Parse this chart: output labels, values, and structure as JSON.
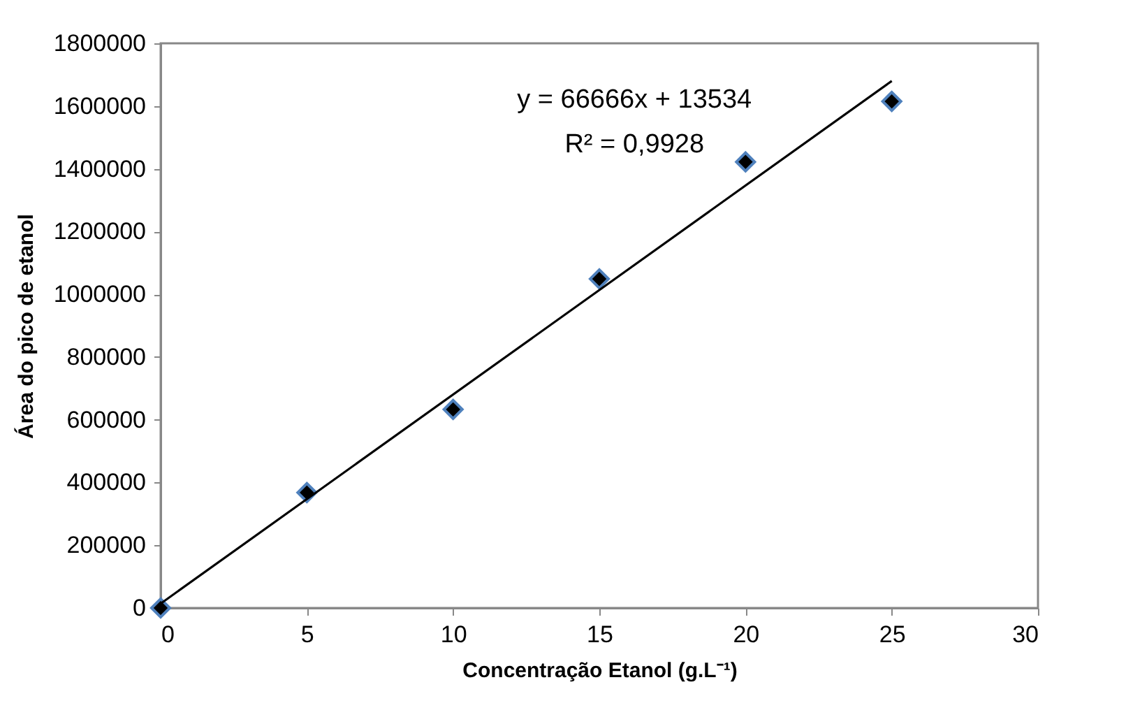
{
  "chart_data": {
    "type": "scatter",
    "xlabel": "Concentração Etanol (g.L⁻¹)",
    "ylabel": "Área do pico de etanol",
    "x": [
      0,
      5,
      10,
      15,
      20,
      25
    ],
    "series": [
      {
        "color": "#000000",
        "marker": "diamond",
        "values": [
          0,
          368000,
          633000,
          1049000,
          1422000,
          1615000
        ]
      },
      {
        "type": "line",
        "color": "#000000",
        "x": [
          0,
          25
        ],
        "values": [
          14000,
          1680000
        ],
        "marker": "none",
        "line_style": "solid"
      }
    ],
    "annotations": [
      "y = 66666x + 13534",
      "R² = 0,9928"
    ],
    "xlim": [
      0,
      30
    ],
    "xticks": [
      0,
      5,
      10,
      15,
      20,
      25,
      30
    ],
    "ylim": [
      0,
      1800000
    ],
    "yticks": [
      0,
      200000,
      400000,
      600000,
      800000,
      1000000,
      1200000,
      1400000,
      1600000,
      1800000
    ],
    "grid": false
  }
}
